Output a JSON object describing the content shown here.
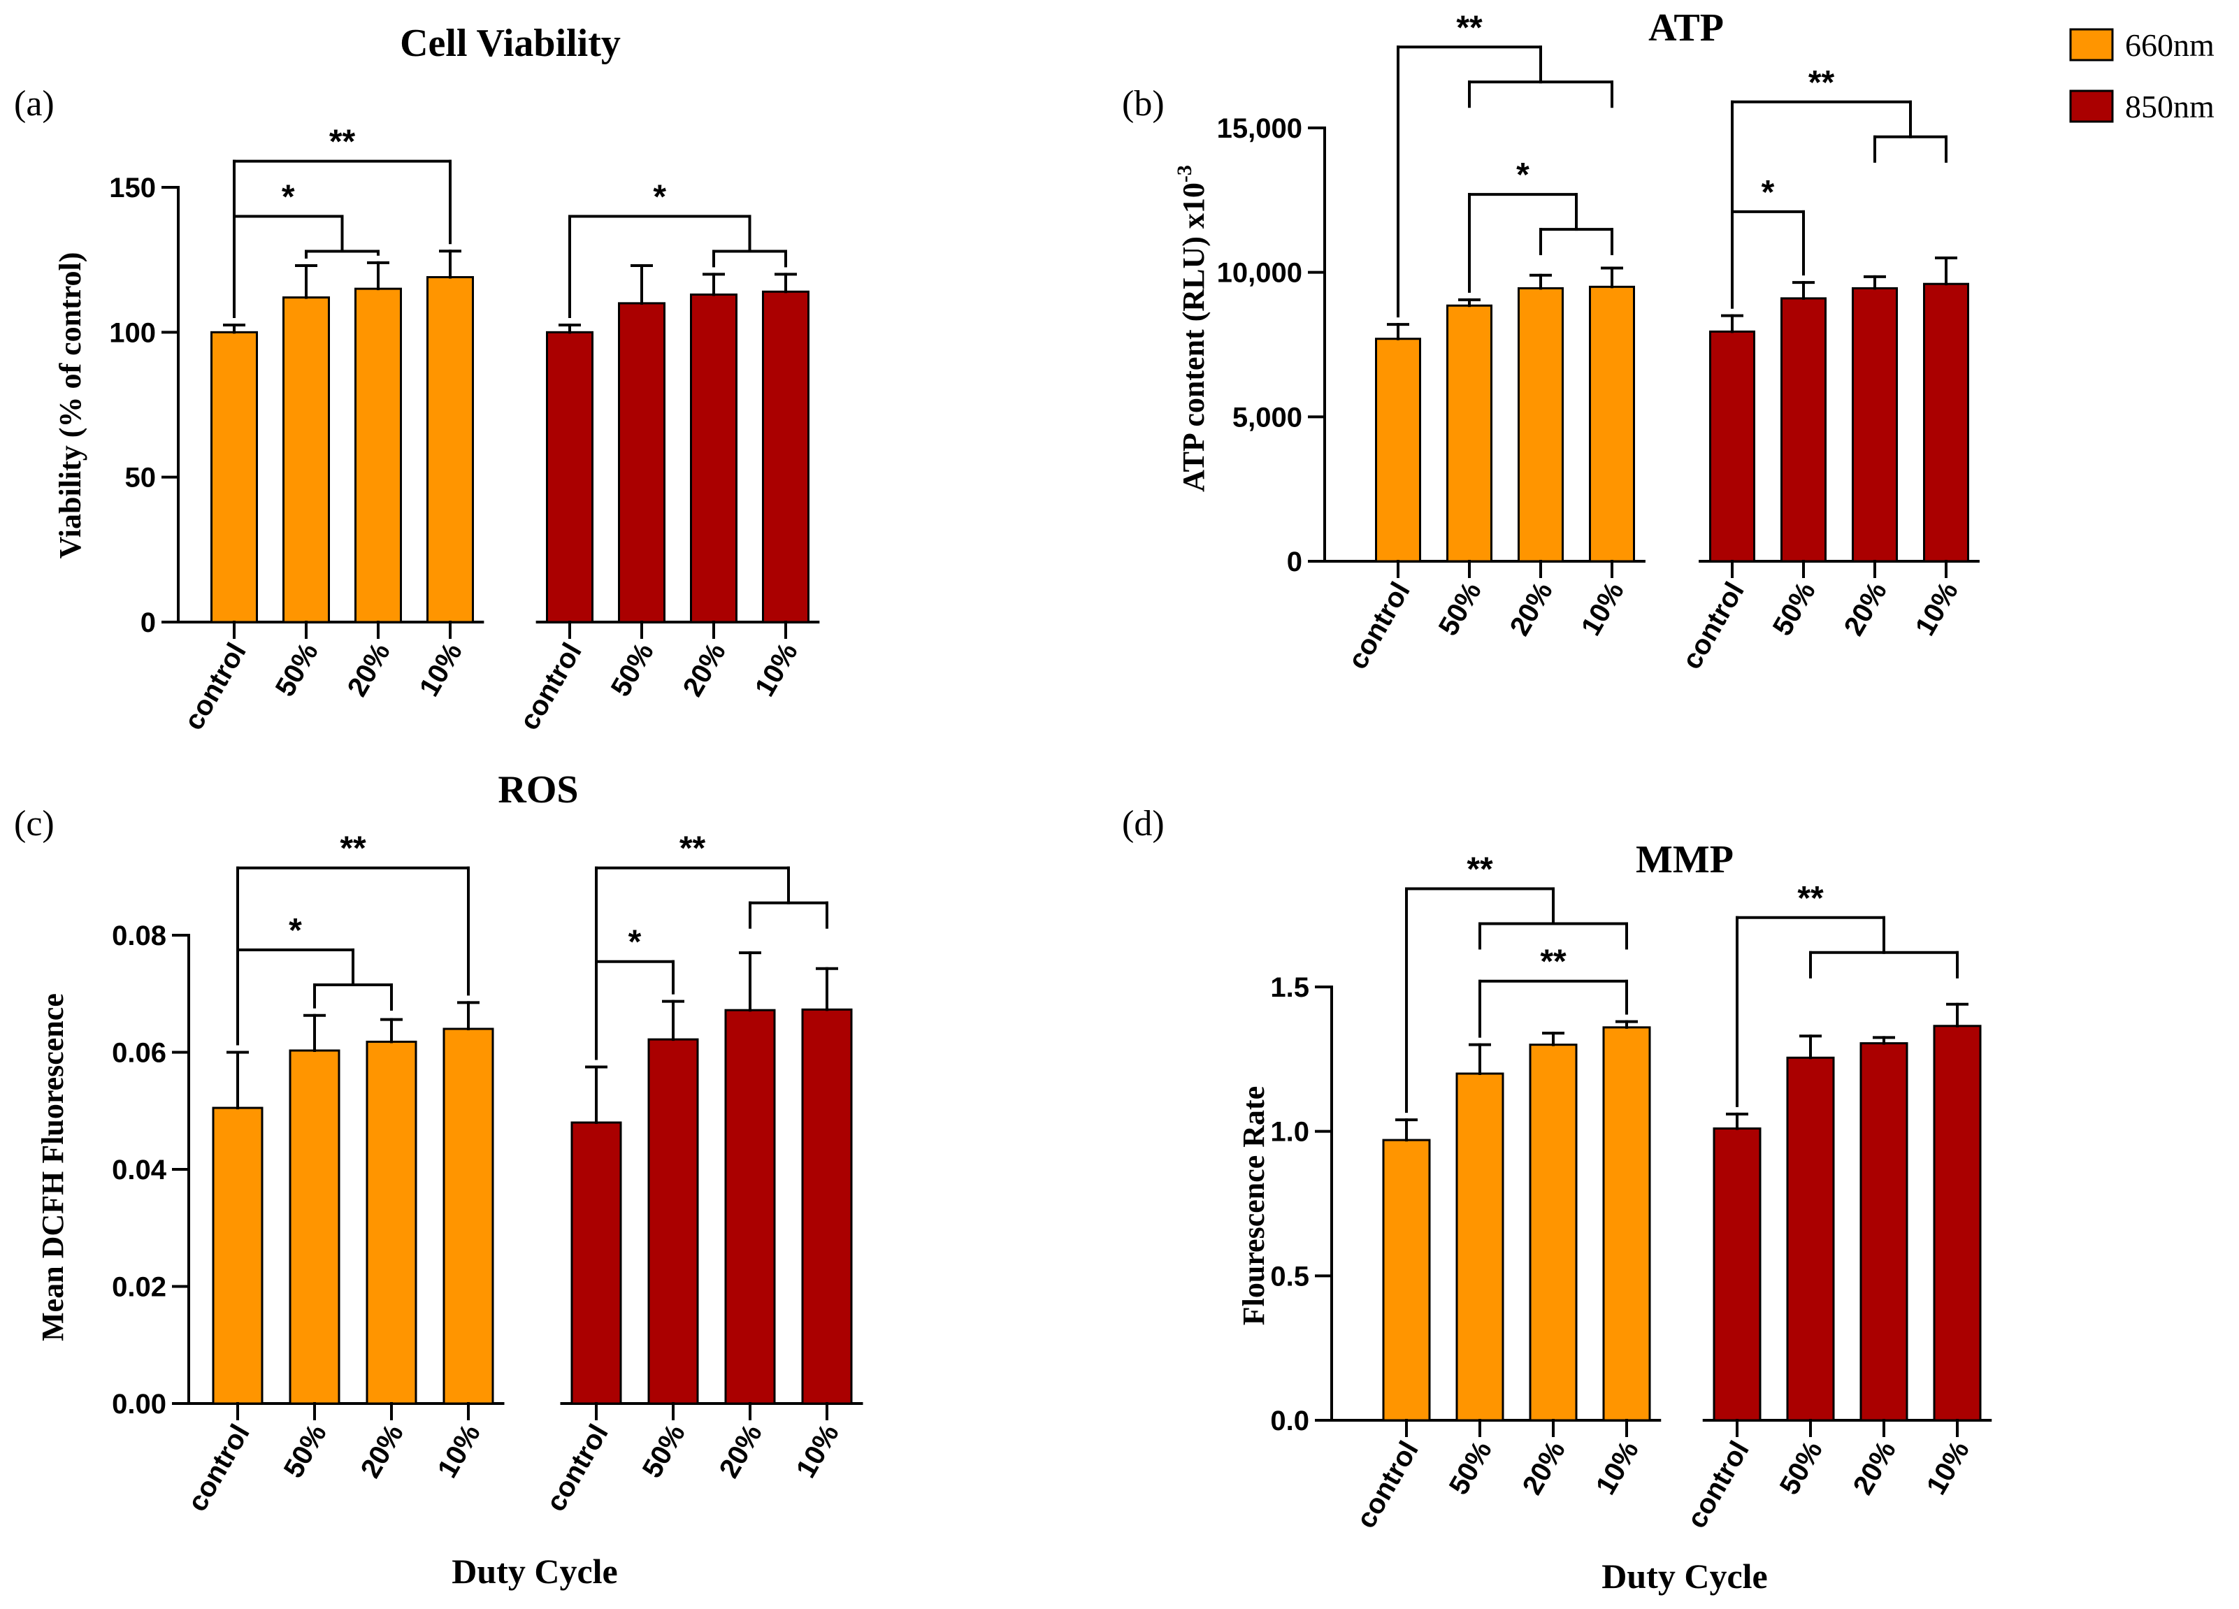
{
  "legend": [
    {
      "label": "660nm",
      "color": "#FF9500"
    },
    {
      "label": "850nm",
      "color": "#AA0000"
    }
  ],
  "chart_data": [
    {
      "type": "bar",
      "panel": "(a)",
      "title": "Cell Viability",
      "ylabel": "Viability (% of control)",
      "xlabel": "",
      "ylim": [
        0,
        150
      ],
      "yticks": [
        0,
        50,
        100,
        150
      ],
      "ytick_labels": [
        "0",
        "50",
        "100",
        "150"
      ],
      "categories": [
        "control",
        "50%",
        "20%",
        "10%"
      ],
      "series": [
        {
          "name": "660nm",
          "values": [
            100,
            112,
            115,
            119
          ],
          "errors": [
            2.5,
            11,
            9,
            9
          ]
        },
        {
          "name": "850nm",
          "values": [
            100,
            110,
            113,
            114
          ],
          "errors": [
            2.5,
            13,
            7,
            6
          ]
        }
      ],
      "significance": [
        {
          "series": 0,
          "from": 0,
          "to": [
            3
          ],
          "label": "**",
          "level": 159
        },
        {
          "series": 0,
          "from": 0,
          "to": [
            1,
            2
          ],
          "label": "*",
          "level": 140
        },
        {
          "series": 1,
          "from": 0,
          "to": [
            2,
            3
          ],
          "label": "*",
          "level": 140
        }
      ]
    },
    {
      "type": "bar",
      "panel": "(b)",
      "title": "ATP",
      "ylabel": "ATP content (RLU) x10",
      "ylabel_sup": "-3",
      "xlabel": "",
      "ylim": [
        0,
        15000
      ],
      "yticks": [
        0,
        5000,
        10000,
        15000
      ],
      "ytick_labels": [
        "0",
        "5,000",
        "10,000",
        "15,000"
      ],
      "categories": [
        "control",
        "50%",
        "20%",
        "10%"
      ],
      "series": [
        {
          "name": "660nm",
          "values": [
            7700,
            8850,
            9450,
            9500
          ],
          "errors": [
            500,
            200,
            450,
            650
          ]
        },
        {
          "name": "850nm",
          "values": [
            7950,
            9100,
            9450,
            9600
          ],
          "errors": [
            550,
            550,
            400,
            900
          ]
        }
      ],
      "significance": [
        {
          "series": 0,
          "from": 0,
          "to": [
            1,
            2,
            3
          ],
          "label": "**",
          "level": 17800
        },
        {
          "series": 0,
          "from": 1,
          "to": [
            2,
            3
          ],
          "label": "*",
          "level": 12700
        },
        {
          "series": 1,
          "from": 0,
          "to": [
            2,
            3
          ],
          "label": "**",
          "level": 15900
        },
        {
          "series": 1,
          "from": 0,
          "to": [
            1
          ],
          "label": "*",
          "level": 12100
        }
      ]
    },
    {
      "type": "bar",
      "panel": "(c)",
      "title": "ROS",
      "ylabel": "Mean DCFH Fluorescence",
      "xlabel": "Duty Cycle",
      "ylim": [
        0,
        0.08
      ],
      "yticks": [
        0,
        0.02,
        0.04,
        0.06,
        0.08
      ],
      "ytick_labels": [
        "0.00",
        "0.02",
        "0.04",
        "0.06",
        "0.08"
      ],
      "categories": [
        "control",
        "50%",
        "20%",
        "10%"
      ],
      "series": [
        {
          "name": "660nm",
          "values": [
            0.0505,
            0.0603,
            0.0618,
            0.064
          ],
          "errors": [
            0.0095,
            0.006,
            0.0038,
            0.0045
          ]
        },
        {
          "name": "850nm",
          "values": [
            0.048,
            0.0622,
            0.0672,
            0.0673
          ],
          "errors": [
            0.0095,
            0.0065,
            0.0098,
            0.007
          ]
        }
      ],
      "significance": [
        {
          "series": 0,
          "from": 0,
          "to": [
            3
          ],
          "label": "**",
          "level": 0.0915
        },
        {
          "series": 0,
          "from": 0,
          "to": [
            1,
            2
          ],
          "label": "*",
          "level": 0.0775
        },
        {
          "series": 1,
          "from": 0,
          "to": [
            2,
            3
          ],
          "label": "**",
          "level": 0.0915
        },
        {
          "series": 1,
          "from": 0,
          "to": [
            1
          ],
          "label": "*",
          "level": 0.0755
        }
      ]
    },
    {
      "type": "bar",
      "panel": "(d)",
      "title": "MMP",
      "ylabel": "Flourescence Rate",
      "xlabel": "Duty Cycle",
      "ylim": [
        0,
        1.5
      ],
      "yticks": [
        0,
        0.5,
        1.0,
        1.5
      ],
      "ytick_labels": [
        "0.0",
        "0.5",
        "1.0",
        "1.5"
      ],
      "categories": [
        "control",
        "50%",
        "20%",
        "10%"
      ],
      "series": [
        {
          "name": "660nm",
          "values": [
            0.97,
            1.2,
            1.3,
            1.36
          ],
          "errors": [
            0.07,
            0.1,
            0.04,
            0.02
          ]
        },
        {
          "name": "850nm",
          "values": [
            1.01,
            1.255,
            1.305,
            1.365
          ],
          "errors": [
            0.05,
            0.075,
            0.02,
            0.075
          ]
        }
      ],
      "significance": [
        {
          "series": 0,
          "from": 0,
          "to": [
            1,
            2,
            3
          ],
          "label": "**",
          "level": 1.84
        },
        {
          "series": 0,
          "from": 1,
          "to": [
            3
          ],
          "label": "**",
          "level": 1.52
        },
        {
          "series": 1,
          "from": 0,
          "to": [
            1,
            2,
            3
          ],
          "label": "**",
          "level": 1.74
        }
      ]
    }
  ]
}
